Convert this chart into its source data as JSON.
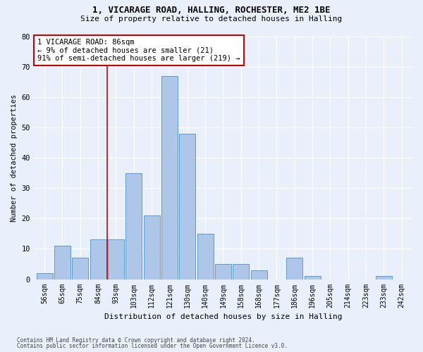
{
  "title1": "1, VICARAGE ROAD, HALLING, ROCHESTER, ME2 1BE",
  "title2": "Size of property relative to detached houses in Halling",
  "xlabel": "Distribution of detached houses by size in Halling",
  "ylabel": "Number of detached properties",
  "footer1": "Contains HM Land Registry data © Crown copyright and database right 2024.",
  "footer2": "Contains public sector information licensed under the Open Government Licence v3.0.",
  "categories": [
    "56sqm",
    "65sqm",
    "75sqm",
    "84sqm",
    "93sqm",
    "103sqm",
    "112sqm",
    "121sqm",
    "130sqm",
    "140sqm",
    "149sqm",
    "158sqm",
    "168sqm",
    "177sqm",
    "186sqm",
    "196sqm",
    "205sqm",
    "214sqm",
    "223sqm",
    "233sqm",
    "242sqm"
  ],
  "bar_values": [
    2,
    11,
    7,
    13,
    13,
    35,
    21,
    67,
    48,
    15,
    5,
    5,
    3,
    0,
    7,
    1,
    0,
    0,
    0,
    1,
    0
  ],
  "bar_color": "#aec6e8",
  "bar_edge_color": "#5b9bd5",
  "background_color": "#eaf0fb",
  "grid_color": "#ffffff",
  "red_line_x": 3.5,
  "annotation_text": "1 VICARAGE ROAD: 86sqm\n← 9% of detached houses are smaller (21)\n91% of semi-detached houses are larger (219) →",
  "annotation_box_color": "#ffffff",
  "annotation_box_edge": "#cc0000",
  "red_line_color": "#cc0000",
  "ylim": [
    0,
    80
  ],
  "yticks": [
    0,
    10,
    20,
    30,
    40,
    50,
    60,
    70,
    80
  ],
  "title1_fontsize": 9,
  "title2_fontsize": 8,
  "tick_fontsize": 7,
  "ylabel_fontsize": 7.5,
  "xlabel_fontsize": 8
}
